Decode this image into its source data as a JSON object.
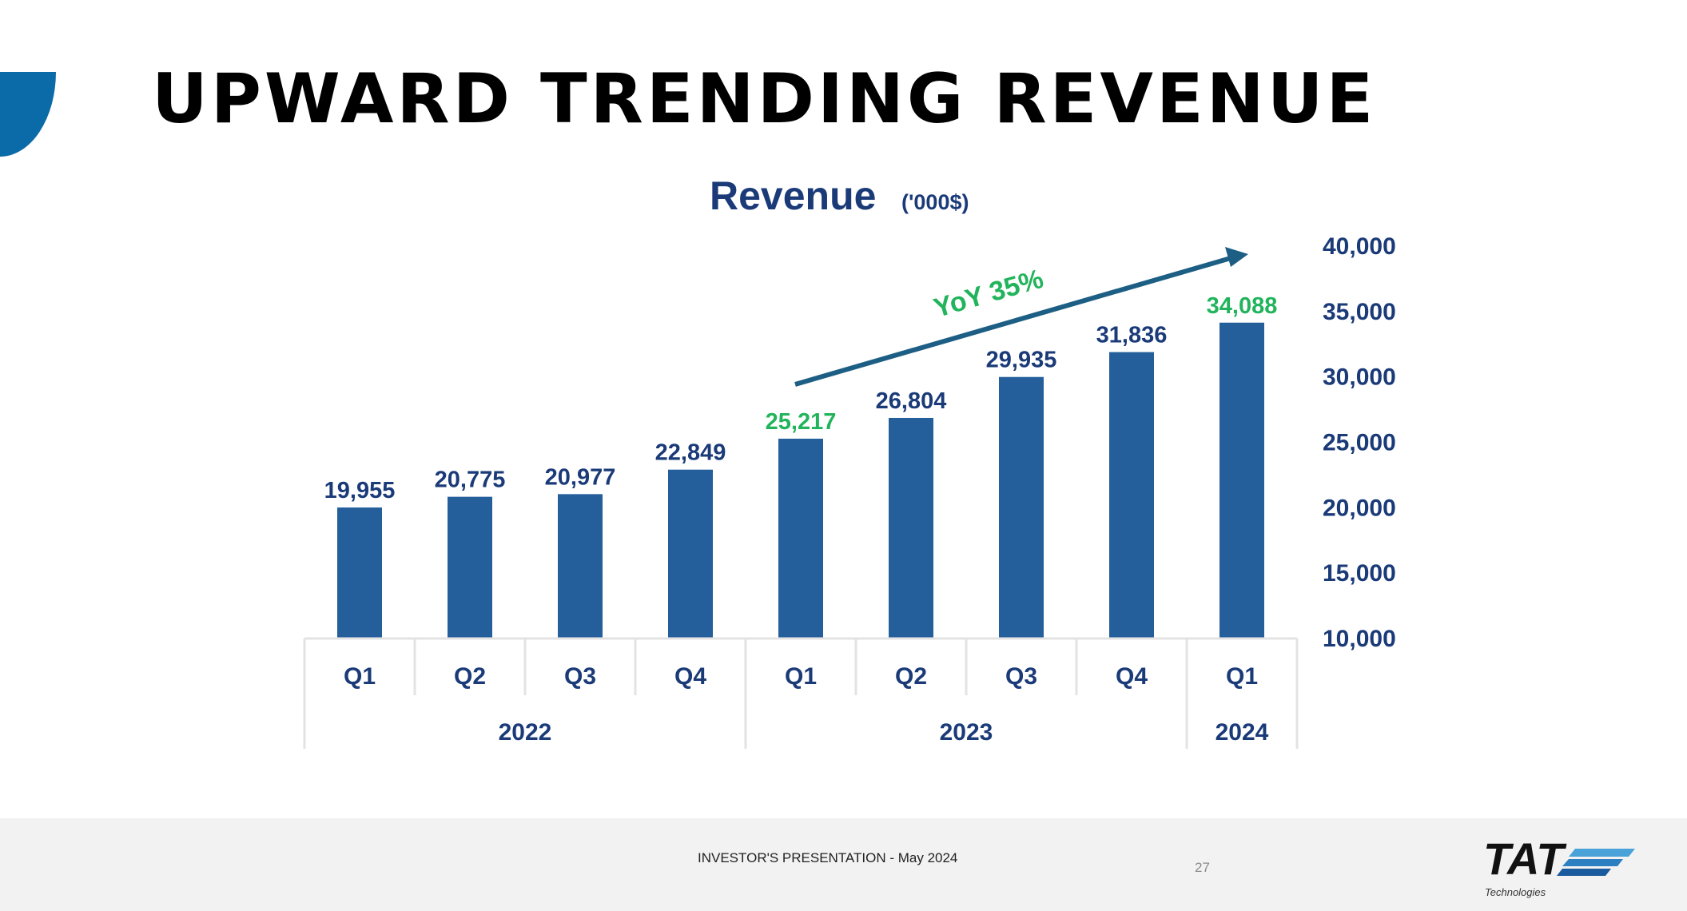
{
  "slide": {
    "title": "UPWARD TRENDING REVENUE",
    "footer_text": "INVESTOR'S PRESENTATION - May 2024",
    "page_number": "27",
    "logo_text": "TAT",
    "logo_subtext": "Technologies"
  },
  "colors": {
    "bar": "#245f9c",
    "label_navy": "#1a3a78",
    "highlight_green": "#22b45c",
    "arrow": "#1d5e84",
    "accent_blue": "#0b6aa8"
  },
  "chart_data": {
    "type": "bar",
    "title": "Revenue",
    "title_unit": "('000$)",
    "categories": [
      "Q1",
      "Q2",
      "Q3",
      "Q4",
      "Q1",
      "Q2",
      "Q3",
      "Q4",
      "Q1"
    ],
    "value_labels": [
      "19,955",
      "20,775",
      "20,977",
      "22,849",
      "25,217",
      "26,804",
      "29,935",
      "31,836",
      "34,088"
    ],
    "values": [
      19955,
      20775,
      20977,
      22849,
      25217,
      26804,
      29935,
      31836,
      34088
    ],
    "highlighted": [
      false,
      false,
      false,
      false,
      true,
      false,
      false,
      false,
      true
    ],
    "years": [
      {
        "label": "2022",
        "span": 4
      },
      {
        "label": "2023",
        "span": 4
      },
      {
        "label": "2024",
        "span": 1
      }
    ],
    "ylim": [
      10000,
      40000
    ],
    "yticks": [
      "10,000",
      "15,000",
      "20,000",
      "25,000",
      "30,000",
      "35,000",
      "40,000"
    ],
    "ytick_values": [
      10000,
      15000,
      20000,
      25000,
      30000,
      35000,
      40000
    ],
    "y_axis_side": "right",
    "annotation": "YoY 35%",
    "grid": false
  }
}
